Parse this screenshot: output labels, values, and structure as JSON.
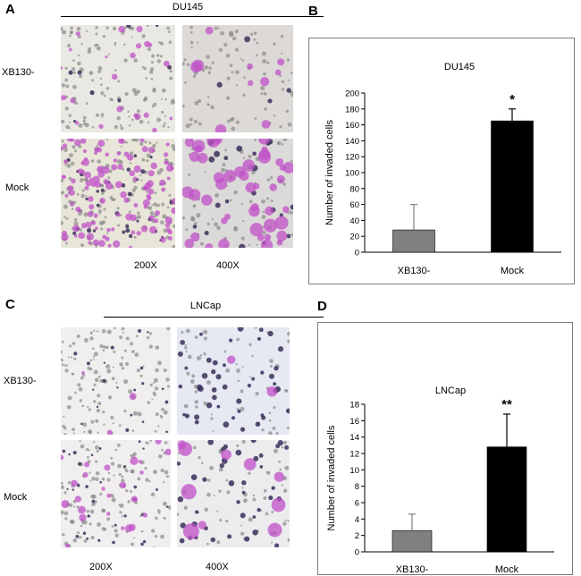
{
  "panels": {
    "A": {
      "letter": "A",
      "cell_line": "DU145",
      "row_labels": [
        "XB130-",
        "Mock"
      ],
      "magnifications": [
        "200X",
        "400X"
      ],
      "image_tint": "#c050c8"
    },
    "C": {
      "letter": "C",
      "cell_line": "LNCap",
      "row_labels": [
        "XB130-",
        "Mock"
      ],
      "magnifications": [
        "200X",
        "400X"
      ],
      "image_tint": "#c050c8"
    },
    "B": {
      "letter": "B"
    },
    "D": {
      "letter": "D"
    }
  },
  "chart_data": [
    {
      "type": "bar",
      "title": "DU145",
      "ylabel": "Number of invaded cells",
      "categories": [
        "XB130-",
        "Mock"
      ],
      "values": [
        28,
        165
      ],
      "error": [
        32,
        15
      ],
      "significance": [
        "",
        "*"
      ],
      "ylim": [
        0,
        200
      ],
      "yticks": [
        0,
        20,
        40,
        60,
        80,
        100,
        120,
        140,
        160,
        180,
        200
      ],
      "colors": [
        "#808080",
        "#000000"
      ]
    },
    {
      "type": "bar",
      "title": "LNCap",
      "ylabel": "Number of invaded cells",
      "categories": [
        "XB130-",
        "Mock"
      ],
      "values": [
        2.6,
        12.8
      ],
      "error": [
        2.0,
        4.0
      ],
      "significance": [
        "",
        "**"
      ],
      "ylim": [
        0,
        18
      ],
      "yticks": [
        0,
        2,
        4,
        6,
        8,
        10,
        12,
        14,
        16,
        18
      ],
      "colors": [
        "#808080",
        "#000000"
      ]
    }
  ]
}
